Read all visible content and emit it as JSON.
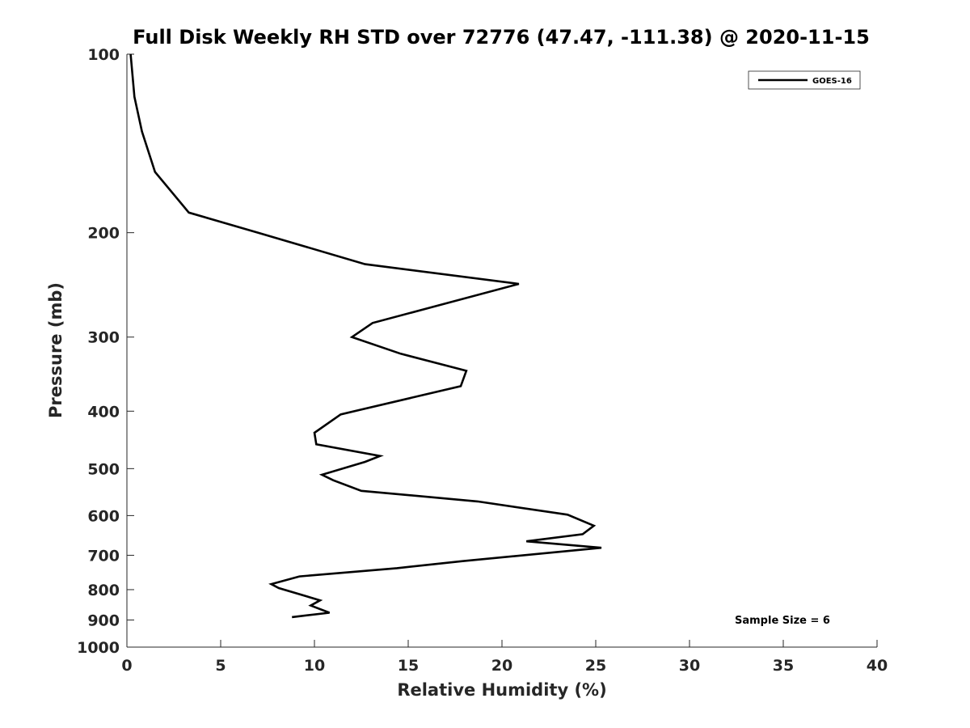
{
  "chart_data": {
    "type": "line",
    "title": "Full Disk Weekly RH STD over 72776 (47.47, -111.38) @ 2020-11-15",
    "xlabel": "Relative Humidity (%)",
    "ylabel": "Pressure (mb)",
    "xlim": [
      0,
      40
    ],
    "ylim": [
      100,
      1000
    ],
    "y_scale": "log",
    "y_reversed": true,
    "x_ticks": [
      0,
      5,
      10,
      15,
      20,
      25,
      30,
      35,
      40
    ],
    "y_ticks": [
      100,
      200,
      300,
      400,
      500,
      600,
      700,
      800,
      900,
      1000
    ],
    "grid": false,
    "legend_position": "top-right",
    "series": [
      {
        "name": "GOES-16",
        "color": "#000000",
        "points": [
          [
            0.2,
            100
          ],
          [
            0.4,
            118
          ],
          [
            0.8,
            135
          ],
          [
            1.5,
            158
          ],
          [
            3.3,
            185
          ],
          [
            7.0,
            200
          ],
          [
            12.7,
            226
          ],
          [
            20.9,
            244
          ],
          [
            13.1,
            284
          ],
          [
            12.0,
            300
          ],
          [
            14.6,
            320
          ],
          [
            18.1,
            342
          ],
          [
            17.8,
            363
          ],
          [
            11.4,
            405
          ],
          [
            10.0,
            435
          ],
          [
            10.1,
            455
          ],
          [
            13.5,
            476
          ],
          [
            12.7,
            487
          ],
          [
            10.4,
            512
          ],
          [
            11.0,
            523
          ],
          [
            12.5,
            545
          ],
          [
            18.7,
            568
          ],
          [
            23.5,
            598
          ],
          [
            24.9,
            624
          ],
          [
            24.3,
            645
          ],
          [
            21.3,
            663
          ],
          [
            25.3,
            680
          ],
          [
            17.9,
            716
          ],
          [
            14.4,
            736
          ],
          [
            9.2,
            760
          ],
          [
            7.7,
            783
          ],
          [
            8.1,
            795
          ],
          [
            10.3,
            834
          ],
          [
            9.8,
            851
          ],
          [
            10.8,
            875
          ],
          [
            8.8,
            890
          ]
        ]
      }
    ],
    "annotations": [
      "Sample Size = 6"
    ]
  }
}
